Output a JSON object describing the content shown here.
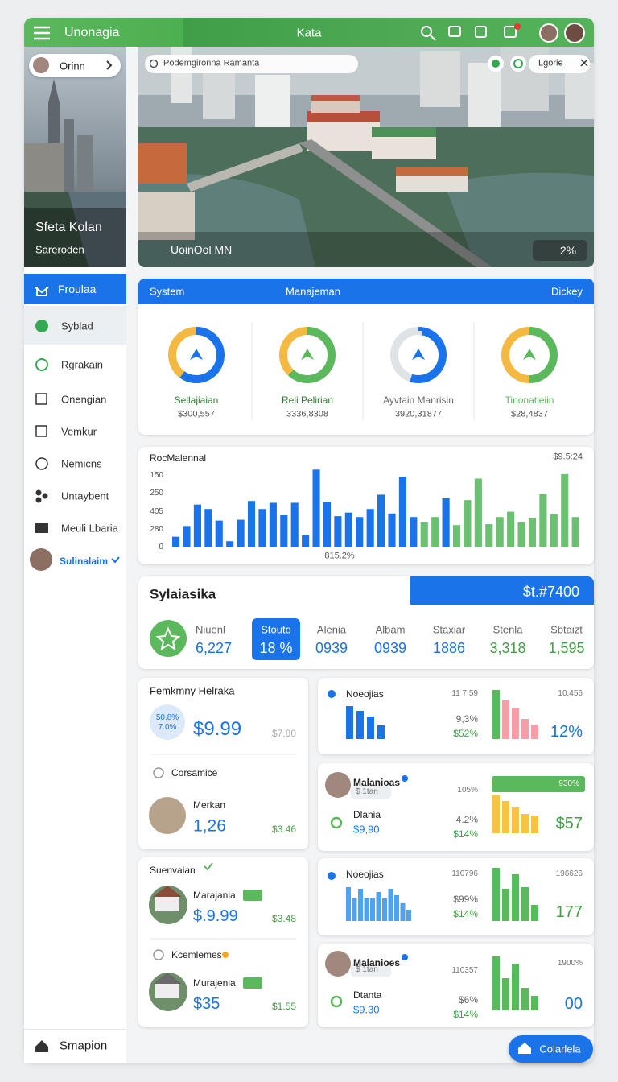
{
  "topbar": {
    "brand": "Unonagia",
    "title": "Kata"
  },
  "sidebar": {
    "profile": "Orinn",
    "hero_title": "Sfeta Kolan",
    "hero_subtitle": "Sareroden",
    "menu": [
      "Froulaa",
      "Syblad",
      "Rgrakain",
      "Onengian",
      "Vemkur",
      "Nemicns",
      "Untaybent",
      "Meuli Lbaria"
    ],
    "user": "Sulinalaim",
    "footer": "Smapion"
  },
  "hero": {
    "search": "Podemgironna Ramanta",
    "chip": "Lgorie",
    "caption": "UoinOol MN",
    "badge": "2%"
  },
  "system": {
    "tabs": [
      "System",
      "Manajeman",
      "Dickey"
    ],
    "items": [
      {
        "label": "Sellajiaian",
        "value": "$300,557",
        "segments": [
          {
            "color": "#1a73e8",
            "value": 60
          },
          {
            "color": "#f4b942",
            "value": 40
          }
        ]
      },
      {
        "label": "Reli Pelirian",
        "value": "3336,8308",
        "segments": [
          {
            "color": "#5cb85c",
            "value": 62
          },
          {
            "color": "#f4b942",
            "value": 38
          }
        ]
      },
      {
        "label": "Ayvtain Manrisin",
        "value": "3920,31877",
        "segments": [
          {
            "color": "#1a73e8",
            "value": 55
          },
          {
            "color": "#dfe3e6",
            "value": 45
          }
        ]
      },
      {
        "label": "Tinonatleiin",
        "value": "$28,4837",
        "segments": [
          {
            "color": "#5cb85c",
            "value": 50
          },
          {
            "color": "#f4b942",
            "value": 50
          }
        ]
      }
    ]
  },
  "bar_chart": {
    "type": "bar",
    "title": "RocMalennal",
    "corner_label": "$9.5:24",
    "x_label": "815.2%",
    "ylim": [
      0,
      450
    ],
    "yticks": [
      {
        "value": 400,
        "label": "150"
      },
      {
        "value": 300,
        "label": "250"
      },
      {
        "value": 200,
        "label": "405"
      },
      {
        "value": 100,
        "label": "280"
      },
      0
    ],
    "grid": false,
    "values": [
      60,
      120,
      240,
      215,
      150,
      35,
      155,
      260,
      215,
      250,
      180,
      250,
      70,
      435,
      255,
      175,
      195,
      170,
      215,
      295,
      190,
      395,
      170,
      140,
      170,
      275,
      125,
      265,
      385,
      130,
      170,
      200,
      140,
      165,
      300,
      185,
      410,
      170
    ],
    "colors": [
      "#1a73e8",
      "#1a73e8",
      "#1a73e8",
      "#1a73e8",
      "#1a73e8",
      "#1a73e8",
      "#1a73e8",
      "#1a73e8",
      "#1a73e8",
      "#1a73e8",
      "#1a73e8",
      "#1a73e8",
      "#1a73e8",
      "#1a73e8",
      "#1a73e8",
      "#1a73e8",
      "#1a73e8",
      "#1a73e8",
      "#1a73e8",
      "#1a73e8",
      "#1a73e8",
      "#1a73e8",
      "#1a73e8",
      "#6cc072",
      "#6cc072",
      "#1a73e8",
      "#6cc072",
      "#6cc072",
      "#6cc072",
      "#6cc072",
      "#6cc072",
      "#6cc072",
      "#6cc072",
      "#6cc072",
      "#6cc072",
      "#6cc072",
      "#6cc072",
      "#6cc072"
    ]
  },
  "stats": {
    "title": "Sylaiasika",
    "total": "$t.#7400",
    "items": [
      {
        "label": "Niuenl",
        "value": "6,227"
      },
      {
        "label": "Stouto",
        "value": "18 %"
      },
      {
        "label": "Alenia",
        "value": "0939"
      },
      {
        "label": "Albam",
        "value": "0939"
      },
      {
        "label": "Staxiar",
        "value": "1886"
      },
      {
        "label": "Stenla",
        "value": "3,318"
      },
      {
        "label": "Sbtaizt",
        "value": "1,595"
      }
    ]
  },
  "left_cards": [
    {
      "title": "Femkmny Helraka",
      "badge": [
        "50.8%",
        "7.0%"
      ],
      "price": "$9.99",
      "old_price": "$7.80",
      "section": "Corsamice",
      "name": "Merkan",
      "amount": "1,26",
      "change": "$3.46"
    },
    {
      "title": "Suenvaian",
      "name": "Marajania",
      "price": "$.9.99",
      "change": "$3.48",
      "section": "Kcemlemes",
      "name2": "Murajenia",
      "price2": "$35",
      "change2": "$1.55"
    }
  ],
  "right_cards": [
    {
      "title": "Noeojias",
      "n1": "11 7.59",
      "n2": "9,3%",
      "n3": "$52%",
      "n4": "10,456",
      "n5": "12%",
      "chart_left": {
        "values": [
          41,
          35,
          28,
          17
        ],
        "colors": [
          "#1a73e8",
          "#1a73e8",
          "#1a73e8",
          "#1a73e8"
        ]
      },
      "chart_right": {
        "values": [
          61,
          48,
          38,
          25,
          18
        ],
        "colors": [
          "#5cb85c",
          "#f2a0a8",
          "#f2a0a8",
          "#f2a0a8",
          "#f2a0a8"
        ]
      }
    },
    {
      "title": "Malanioas",
      "tag": "$ 1tan",
      "sub": "Dlania",
      "price": "$9,90",
      "n1": "105%",
      "n2": "4.2%",
      "n3": "$14%",
      "bar_label": "930%",
      "n5": "$57",
      "chart_right": {
        "values": [
          47,
          40,
          32,
          24,
          22
        ],
        "colors": [
          "#f6c342",
          "#f6c342",
          "#f6c342",
          "#f6c342",
          "#f6c342"
        ]
      }
    },
    {
      "title": "Noeojias",
      "n1": "110796",
      "n2": "$99%",
      "n3": "$14%",
      "n4": "196626",
      "n5": "177",
      "chart_left": {
        "values": [
          42,
          28,
          40,
          28,
          28,
          36,
          28,
          40,
          32,
          22,
          14
        ],
        "colors": [
          "#4da3f0",
          "#4da3f0",
          "#4da3f0",
          "#4da3f0",
          "#4da3f0",
          "#4da3f0",
          "#4da3f0",
          "#4da3f0",
          "#4da3f0",
          "#4da3f0",
          "#4da3f0"
        ]
      },
      "chart_right": {
        "values": [
          66,
          40,
          58,
          42,
          20
        ],
        "colors": [
          "#5cb85c",
          "#5cb85c",
          "#5cb85c",
          "#5cb85c",
          "#5cb85c"
        ]
      }
    },
    {
      "title": "Malanioes",
      "tag": "$ 1tan",
      "sub": "Dtanta",
      "price": "$9.30",
      "n1": "110357",
      "n2": "$6%",
      "n3": "$14%",
      "n4": "1900%",
      "n5": "00",
      "chart_right": {
        "values": [
          67,
          40,
          58,
          28,
          18
        ],
        "colors": [
          "#5cb85c",
          "#5cb85c",
          "#5cb85c",
          "#5cb85c",
          "#5cb85c"
        ]
      }
    }
  ],
  "fab": "Colarlela"
}
